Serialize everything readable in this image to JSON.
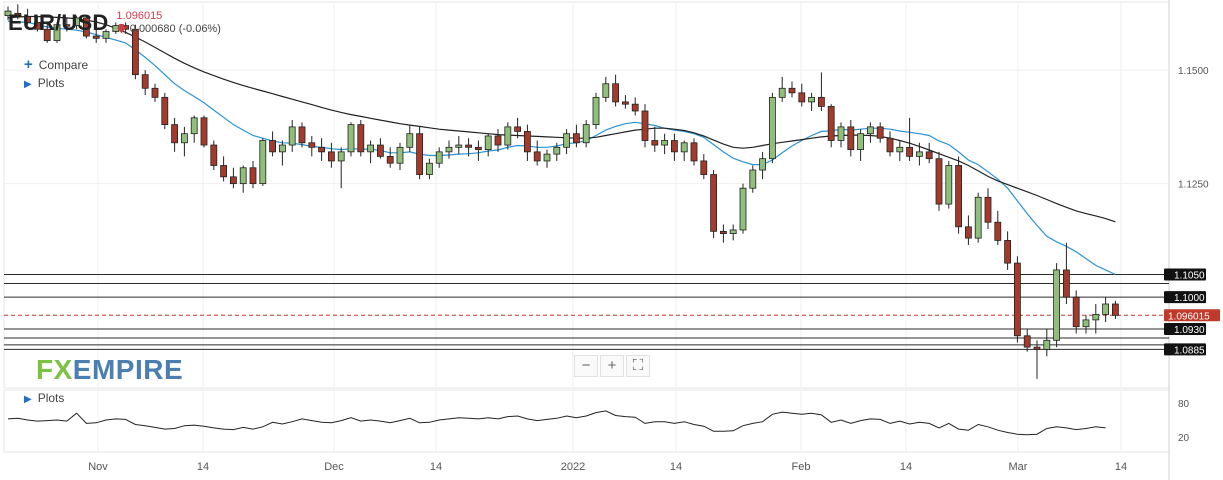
{
  "header": {
    "symbol": "EUR/USD",
    "price": "1.096015",
    "change": "0.000680 (-0.06%)",
    "arrow_icon": "down-arrow-icon"
  },
  "controls": {
    "compare_label": "Compare",
    "plots_label": "Plots",
    "osc_plots_label": "Plots",
    "zoom_out": "−",
    "zoom_in": "+",
    "fullscreen": "⛶"
  },
  "logo": {
    "fx": "FX",
    "empire": "EMPIRE"
  },
  "chart_data": {
    "type": "candlestick",
    "title": "EUR/USD",
    "ylim": [
      1.08,
      1.165
    ],
    "y_ticks": [
      "1.1500",
      "1.1250"
    ],
    "x_ticks": [
      "Nov",
      "14",
      "Dec",
      "14",
      "2022",
      "14",
      "Feb",
      "14",
      "Mar",
      "14"
    ],
    "current_price": 1.096015,
    "current_price_label": "1.096015",
    "horizontal_levels": [
      {
        "value": 1.105,
        "label": "1.1050"
      },
      {
        "value": 1.103,
        "label": ""
      },
      {
        "value": 1.1,
        "label": "1.1000"
      },
      {
        "value": 1.093,
        "label": "1.0930"
      },
      {
        "value": 1.091,
        "label": ""
      },
      {
        "value": 1.0895,
        "label": ""
      },
      {
        "value": 1.0885,
        "label": "1.0885"
      }
    ],
    "candles": [
      [
        1.162,
        1.164,
        1.161,
        1.163
      ],
      [
        1.1625,
        1.1645,
        1.1612,
        1.1618
      ],
      [
        1.1618,
        1.1635,
        1.16,
        1.1605
      ],
      [
        1.1605,
        1.162,
        1.1585,
        1.159
      ],
      [
        1.159,
        1.1605,
        1.156,
        1.1565
      ],
      [
        1.1565,
        1.1605,
        1.156,
        1.16
      ],
      [
        1.16,
        1.1615,
        1.1585,
        1.1598
      ],
      [
        1.1598,
        1.162,
        1.159,
        1.1615
      ],
      [
        1.1615,
        1.162,
        1.157,
        1.1575
      ],
      [
        1.1575,
        1.159,
        1.156,
        1.157
      ],
      [
        1.157,
        1.159,
        1.156,
        1.1585
      ],
      [
        1.1585,
        1.1605,
        1.158,
        1.1598
      ],
      [
        1.1598,
        1.1605,
        1.158,
        1.159
      ],
      [
        1.159,
        1.16,
        1.148,
        1.149
      ],
      [
        1.149,
        1.15,
        1.1445,
        1.146
      ],
      [
        1.146,
        1.147,
        1.143,
        1.144
      ],
      [
        1.144,
        1.145,
        1.137,
        1.138
      ],
      [
        1.138,
        1.1395,
        1.132,
        1.134
      ],
      [
        1.134,
        1.1375,
        1.131,
        1.136
      ],
      [
        1.136,
        1.14,
        1.134,
        1.1395
      ],
      [
        1.1395,
        1.14,
        1.133,
        1.1335
      ],
      [
        1.1335,
        1.1345,
        1.128,
        1.129
      ],
      [
        1.129,
        1.131,
        1.1255,
        1.1265
      ],
      [
        1.1265,
        1.1285,
        1.124,
        1.125
      ],
      [
        1.125,
        1.129,
        1.123,
        1.1285
      ],
      [
        1.1285,
        1.13,
        1.124,
        1.125
      ],
      [
        1.125,
        1.135,
        1.1245,
        1.1345
      ],
      [
        1.1345,
        1.1365,
        1.131,
        1.132
      ],
      [
        1.132,
        1.1345,
        1.129,
        1.1335
      ],
      [
        1.1335,
        1.139,
        1.132,
        1.1375
      ],
      [
        1.1375,
        1.1385,
        1.133,
        1.134
      ],
      [
        1.134,
        1.1355,
        1.131,
        1.133
      ],
      [
        1.133,
        1.135,
        1.13,
        1.132
      ],
      [
        1.132,
        1.134,
        1.1285,
        1.13
      ],
      [
        1.13,
        1.133,
        1.124,
        1.132
      ],
      [
        1.132,
        1.1385,
        1.131,
        1.138
      ],
      [
        1.138,
        1.139,
        1.131,
        1.132
      ],
      [
        1.132,
        1.1345,
        1.1295,
        1.1335
      ],
      [
        1.1335,
        1.135,
        1.1305,
        1.131
      ],
      [
        1.131,
        1.133,
        1.1285,
        1.1295
      ],
      [
        1.1295,
        1.134,
        1.128,
        1.133
      ],
      [
        1.133,
        1.138,
        1.132,
        1.136
      ],
      [
        1.136,
        1.1375,
        1.126,
        1.127
      ],
      [
        1.127,
        1.1305,
        1.126,
        1.1295
      ],
      [
        1.1295,
        1.133,
        1.1285,
        1.132
      ],
      [
        1.132,
        1.1345,
        1.1305,
        1.133
      ],
      [
        1.133,
        1.1355,
        1.1315,
        1.1335
      ],
      [
        1.1335,
        1.135,
        1.131,
        1.133
      ],
      [
        1.133,
        1.1345,
        1.13,
        1.1325
      ],
      [
        1.1325,
        1.136,
        1.131,
        1.1355
      ],
      [
        1.1355,
        1.137,
        1.132,
        1.1335
      ],
      [
        1.1335,
        1.1385,
        1.1325,
        1.1375
      ],
      [
        1.1375,
        1.1395,
        1.135,
        1.1365
      ],
      [
        1.1365,
        1.138,
        1.13,
        1.132
      ],
      [
        1.132,
        1.1345,
        1.129,
        1.13
      ],
      [
        1.13,
        1.1325,
        1.1285,
        1.1315
      ],
      [
        1.1315,
        1.134,
        1.13,
        1.133
      ],
      [
        1.133,
        1.137,
        1.1315,
        1.136
      ],
      [
        1.136,
        1.138,
        1.133,
        1.134
      ],
      [
        1.134,
        1.139,
        1.133,
        1.138
      ],
      [
        1.138,
        1.145,
        1.137,
        1.144
      ],
      [
        1.144,
        1.1485,
        1.143,
        1.147
      ],
      [
        1.147,
        1.149,
        1.142,
        1.143
      ],
      [
        1.143,
        1.1445,
        1.1415,
        1.1425
      ],
      [
        1.1425,
        1.144,
        1.14,
        1.141
      ],
      [
        1.141,
        1.1425,
        1.133,
        1.1345
      ],
      [
        1.1345,
        1.1375,
        1.132,
        1.1335
      ],
      [
        1.1335,
        1.136,
        1.1315,
        1.1345
      ],
      [
        1.1345,
        1.136,
        1.13,
        1.132
      ],
      [
        1.132,
        1.1345,
        1.13,
        1.134
      ],
      [
        1.134,
        1.135,
        1.129,
        1.13
      ],
      [
        1.13,
        1.1315,
        1.126,
        1.127
      ],
      [
        1.127,
        1.128,
        1.113,
        1.1145
      ],
      [
        1.1145,
        1.116,
        1.112,
        1.114
      ],
      [
        1.114,
        1.116,
        1.1125,
        1.1148
      ],
      [
        1.1148,
        1.125,
        1.114,
        1.124
      ],
      [
        1.124,
        1.129,
        1.123,
        1.128
      ],
      [
        1.128,
        1.132,
        1.126,
        1.1305
      ],
      [
        1.1305,
        1.145,
        1.1295,
        1.144
      ],
      [
        1.144,
        1.1485,
        1.143,
        1.146
      ],
      [
        1.146,
        1.1475,
        1.144,
        1.145
      ],
      [
        1.145,
        1.147,
        1.142,
        1.143
      ],
      [
        1.143,
        1.145,
        1.141,
        1.144
      ],
      [
        1.144,
        1.1495,
        1.141,
        1.142
      ],
      [
        1.142,
        1.1425,
        1.133,
        1.1345
      ],
      [
        1.1345,
        1.1385,
        1.133,
        1.1375
      ],
      [
        1.1375,
        1.139,
        1.131,
        1.1325
      ],
      [
        1.1325,
        1.137,
        1.13,
        1.136
      ],
      [
        1.136,
        1.1385,
        1.134,
        1.1375
      ],
      [
        1.1375,
        1.1385,
        1.134,
        1.135
      ],
      [
        1.135,
        1.1365,
        1.131,
        1.132
      ],
      [
        1.132,
        1.1345,
        1.13,
        1.133
      ],
      [
        1.133,
        1.1395,
        1.13,
        1.131
      ],
      [
        1.131,
        1.134,
        1.129,
        1.132
      ],
      [
        1.132,
        1.134,
        1.1295,
        1.1305
      ],
      [
        1.1305,
        1.132,
        1.119,
        1.1205
      ],
      [
        1.1205,
        1.13,
        1.1195,
        1.129
      ],
      [
        1.129,
        1.131,
        1.114,
        1.1155
      ],
      [
        1.1155,
        1.118,
        1.1115,
        1.113
      ],
      [
        1.113,
        1.123,
        1.112,
        1.122
      ],
      [
        1.122,
        1.124,
        1.115,
        1.1165
      ],
      [
        1.1165,
        1.119,
        1.1115,
        1.1125
      ],
      [
        1.1125,
        1.1145,
        1.106,
        1.1075
      ],
      [
        1.1075,
        1.109,
        1.09,
        1.0915
      ],
      [
        1.0915,
        1.093,
        1.088,
        1.089
      ],
      [
        1.089,
        1.0905,
        1.082,
        1.0885
      ],
      [
        1.0885,
        1.093,
        1.087,
        1.0905
      ],
      [
        1.0905,
        1.1075,
        1.089,
        1.106
      ],
      [
        1.106,
        1.112,
        1.0985,
        1.1
      ],
      [
        1.1,
        1.1015,
        1.092,
        1.0935
      ],
      [
        1.0935,
        1.096,
        1.092,
        1.095
      ],
      [
        1.095,
        1.0985,
        1.092,
        1.0962
      ],
      [
        1.0962,
        1.1,
        1.0945,
        1.0985
      ],
      [
        1.0985,
        1.0992,
        1.0952,
        1.096
      ]
    ],
    "series": [
      {
        "name": "",
        "color": "#2a93d5",
        "values": [
          1.1608,
          1.1606,
          1.1605,
          1.16,
          1.1595,
          1.1592,
          1.159,
          1.1588,
          1.1584,
          1.1578,
          1.1572,
          1.1566,
          1.156,
          1.1545,
          1.1528,
          1.151,
          1.149,
          1.147,
          1.1455,
          1.1442,
          1.1428,
          1.1412,
          1.1396,
          1.138,
          1.1368,
          1.1356,
          1.135,
          1.1344,
          1.134,
          1.1339,
          1.1336,
          1.1332,
          1.133,
          1.1327,
          1.1325,
          1.1327,
          1.1326,
          1.1326,
          1.1323,
          1.1318,
          1.1318,
          1.132,
          1.1315,
          1.1312,
          1.1312,
          1.1313,
          1.1315,
          1.1316,
          1.1318,
          1.1322,
          1.1324,
          1.133,
          1.1334,
          1.1333,
          1.133,
          1.133,
          1.1333,
          1.1338,
          1.134,
          1.1345,
          1.1356,
          1.1368,
          1.1376,
          1.1382,
          1.1385,
          1.1382,
          1.1378,
          1.1372,
          1.1368,
          1.1365,
          1.136,
          1.1352,
          1.1336,
          1.132,
          1.1306,
          1.1298,
          1.1292,
          1.1292,
          1.1302,
          1.1318,
          1.1333,
          1.1345,
          1.1356,
          1.1365,
          1.1366,
          1.137,
          1.1368,
          1.137,
          1.1372,
          1.1372,
          1.137,
          1.1366,
          1.1363,
          1.136,
          1.1356,
          1.1344,
          1.1336,
          1.132,
          1.1302,
          1.1292,
          1.1276,
          1.126,
          1.124,
          1.1212,
          1.1184,
          1.1158,
          1.1134,
          1.1122,
          1.1112,
          1.11,
          1.1085,
          1.107,
          1.106,
          1.105
        ]
      },
      {
        "name": "",
        "color": "#222222",
        "values": [
          1.1615,
          1.1617,
          1.1618,
          1.1618,
          1.1617,
          1.1616,
          1.1615,
          1.1613,
          1.161,
          1.1606,
          1.16,
          1.1592,
          1.1583,
          1.1573,
          1.1562,
          1.155,
          1.1538,
          1.1526,
          1.1515,
          1.1505,
          1.1496,
          1.1488,
          1.148,
          1.1473,
          1.1466,
          1.146,
          1.1454,
          1.1448,
          1.1442,
          1.1436,
          1.143,
          1.1424,
          1.1418,
          1.1412,
          1.1407,
          1.1402,
          1.1398,
          1.1394,
          1.139,
          1.1386,
          1.1382,
          1.1379,
          1.1376,
          1.1373,
          1.137,
          1.1368,
          1.1366,
          1.1364,
          1.1362,
          1.136,
          1.1358,
          1.1357,
          1.1356,
          1.1355,
          1.1354,
          1.1353,
          1.1352,
          1.1351,
          1.135,
          1.135,
          1.1352,
          1.1356,
          1.136,
          1.1364,
          1.1368,
          1.137,
          1.1372,
          1.1372,
          1.137,
          1.1367,
          1.1362,
          1.1355,
          1.1346,
          1.1337,
          1.133,
          1.1328,
          1.133,
          1.1334,
          1.1338,
          1.1341,
          1.1344,
          1.1347,
          1.135,
          1.1353,
          1.1355,
          1.1356,
          1.1357,
          1.1357,
          1.1356,
          1.1354,
          1.135,
          1.1345,
          1.1339,
          1.1332,
          1.1324,
          1.1316,
          1.1308,
          1.13,
          1.129,
          1.1278,
          1.1266,
          1.1256,
          1.1248,
          1.124,
          1.1232,
          1.1224,
          1.1215,
          1.1206,
          1.1198,
          1.119,
          1.1184,
          1.1179,
          1.1173,
          1.1166
        ]
      }
    ],
    "oscillator": {
      "ylim": [
        0,
        100
      ],
      "y_ticks": [
        "80",
        "20"
      ],
      "values": [
        52,
        53,
        50,
        48,
        49,
        50,
        48,
        62,
        44,
        45,
        50,
        52,
        51,
        42,
        40,
        37,
        34,
        35,
        40,
        41,
        39,
        36,
        34,
        33,
        37,
        34,
        38,
        46,
        43,
        47,
        52,
        49,
        46,
        45,
        49,
        54,
        48,
        50,
        48,
        45,
        49,
        53,
        45,
        46,
        50,
        52,
        54,
        53,
        52,
        54,
        52,
        56,
        57,
        52,
        49,
        51,
        53,
        57,
        54,
        57,
        63,
        66,
        58,
        56,
        55,
        44,
        47,
        47,
        44,
        47,
        42,
        39,
        30,
        30,
        31,
        40,
        44,
        47,
        60,
        64,
        62,
        60,
        62,
        59,
        46,
        50,
        44,
        49,
        52,
        51,
        44,
        48,
        43,
        46,
        44,
        36,
        44,
        34,
        32,
        42,
        38,
        32,
        28,
        25,
        24,
        25,
        35,
        38,
        36,
        33,
        35,
        38,
        36
      ]
    }
  }
}
